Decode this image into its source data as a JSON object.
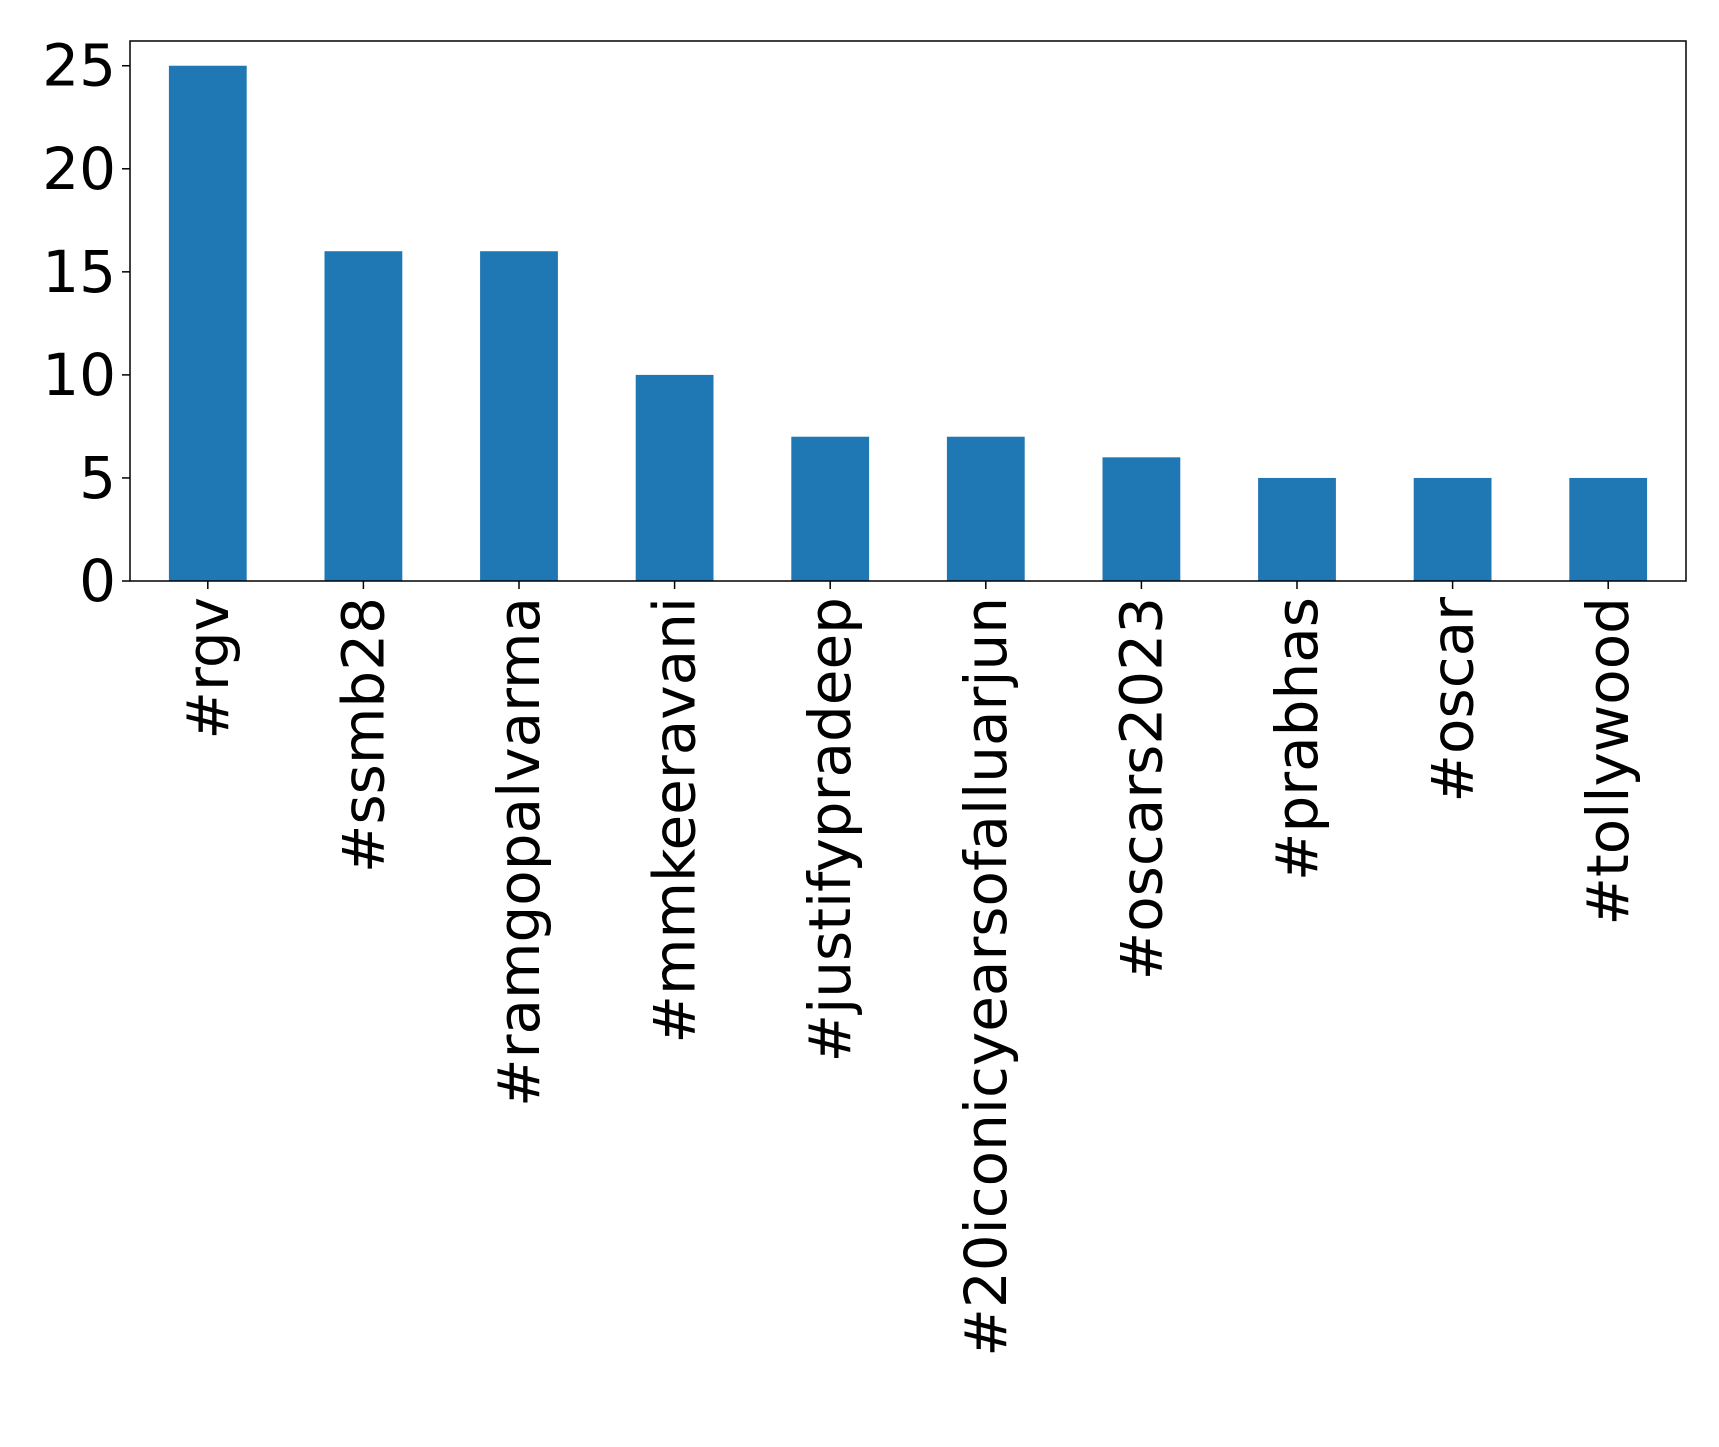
{
  "chart_data": {
    "type": "bar",
    "categories": [
      "#rgv",
      "#ssmb28",
      "#ramgopalvarma",
      "#mmkeeravani",
      "#justifypradeep",
      "#20iconicyearsofalluarjun",
      "#oscars2023",
      "#prabhas",
      "#oscar",
      "#tollywood"
    ],
    "values": [
      25,
      16,
      16,
      10,
      7,
      7,
      6,
      5,
      5,
      5
    ],
    "title": "",
    "xlabel": "",
    "ylabel": "",
    "ylim": [
      0,
      26.2
    ],
    "yticks": [
      "0",
      "5",
      "10",
      "15",
      "20",
      "25"
    ],
    "bar_color": "#1f77b4",
    "grid": false,
    "legend": "none"
  }
}
